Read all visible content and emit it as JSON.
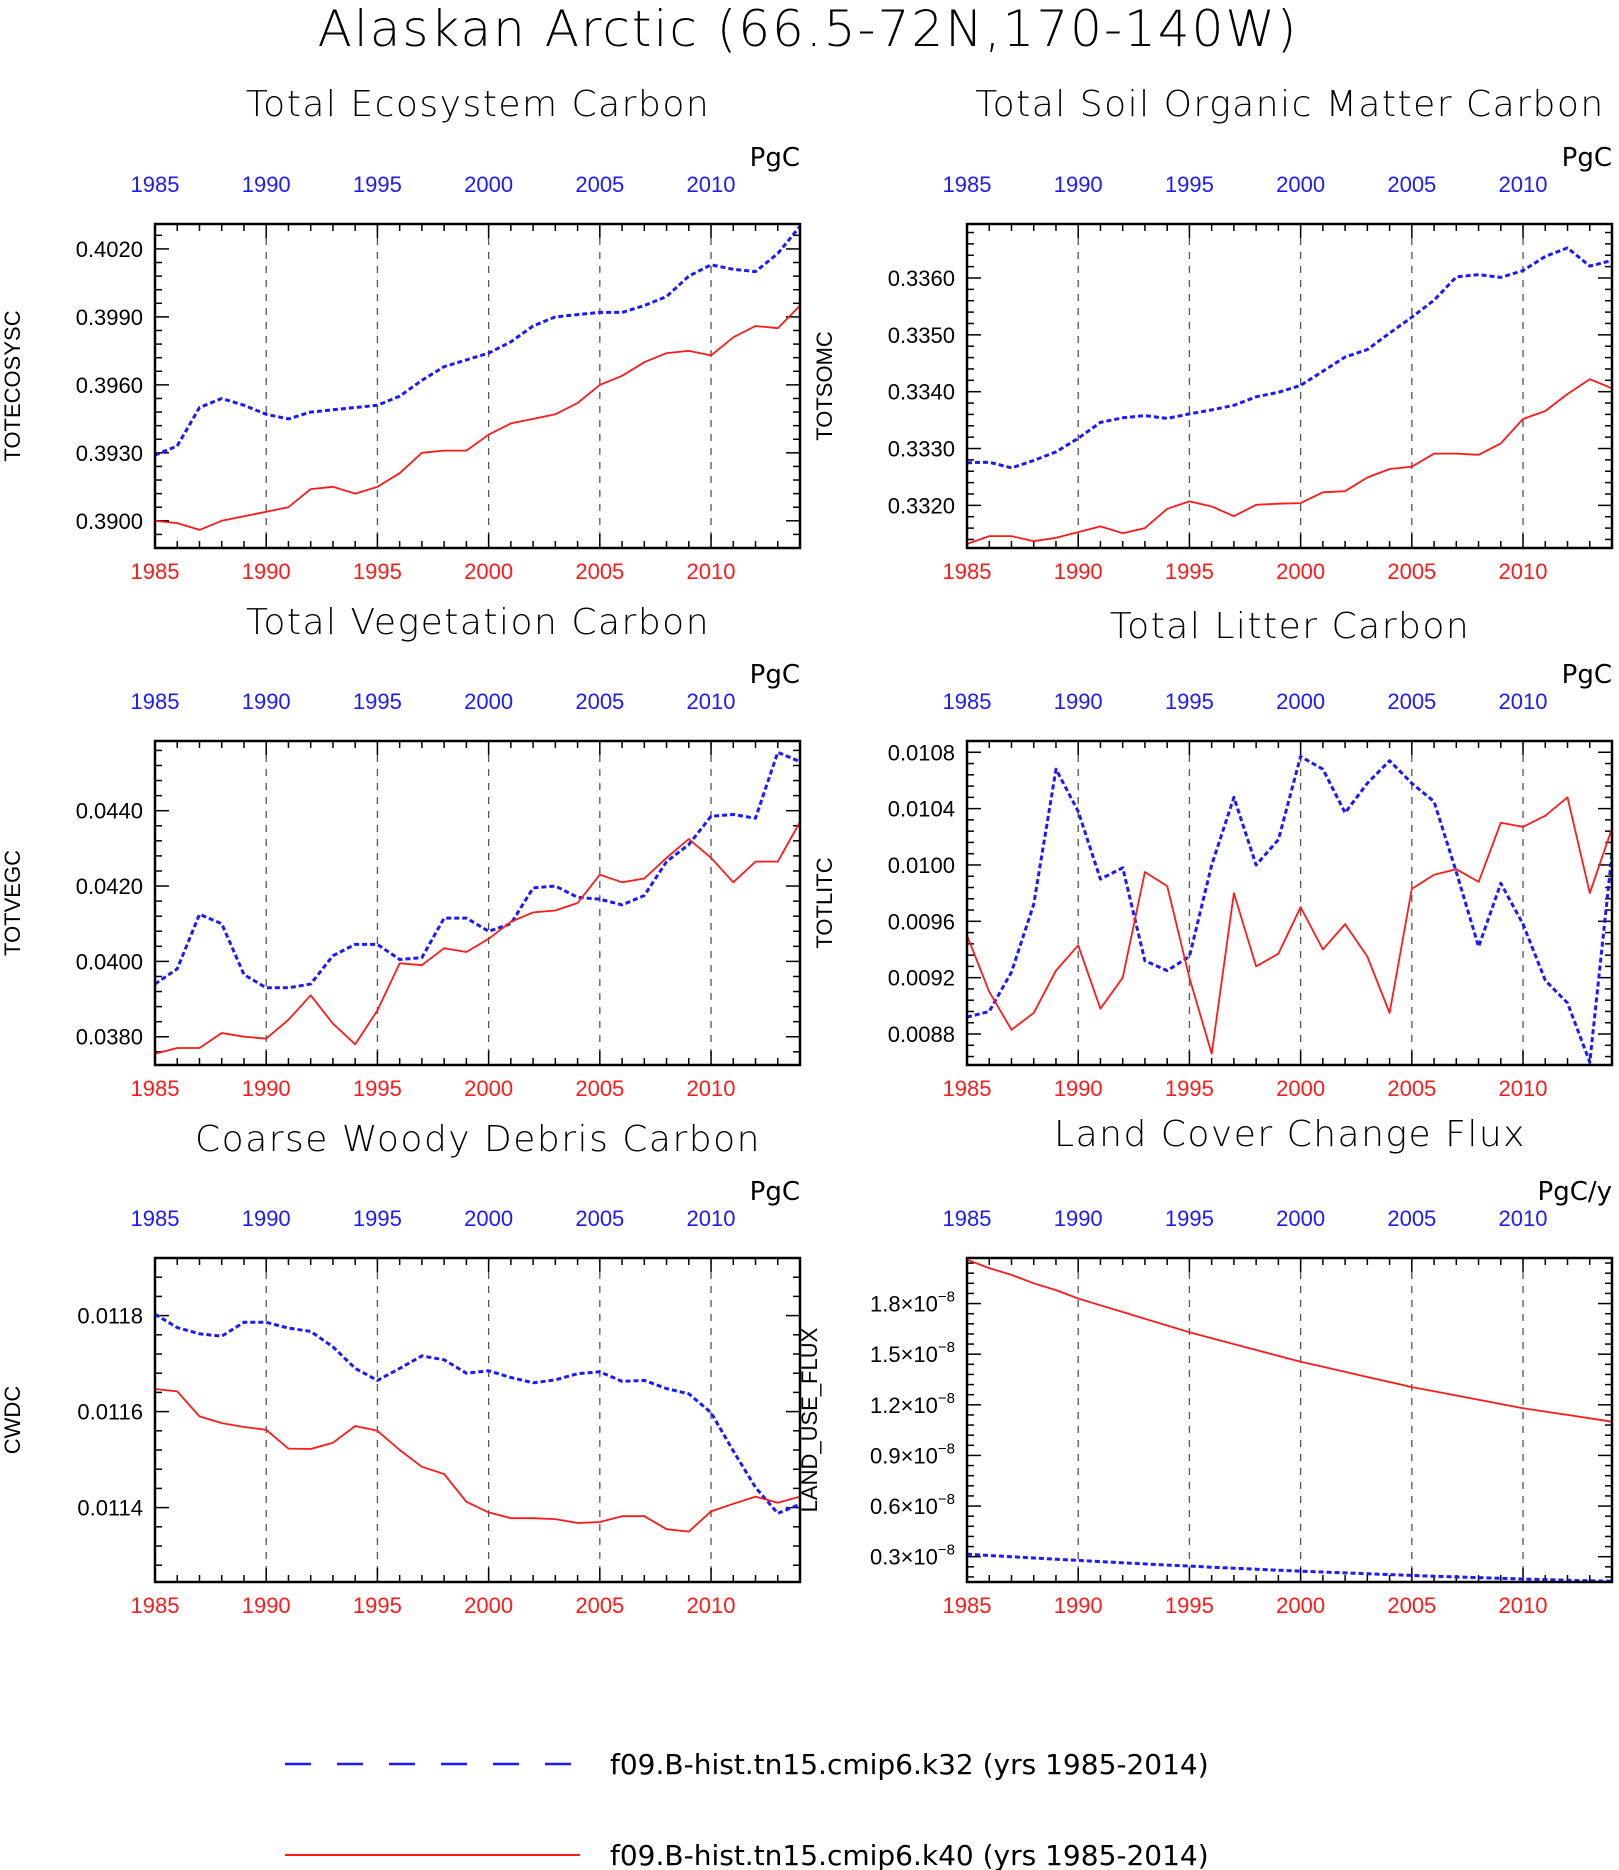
{
  "title": "Alaskan Arctic (66.5-72N,170-140W)",
  "colors": {
    "k32": "#1a1aff",
    "k40": "#ff1a1a",
    "axis": "#000000",
    "grid": "#555555"
  },
  "legend": {
    "items": [
      {
        "label": "f09.B-hist.tn15.cmip6.k32 (yrs 1985-2014)",
        "color": "#1a1aff",
        "style": "dashed"
      },
      {
        "label": "f09.B-hist.tn15.cmip6.k40 (yrs 1985-2014)",
        "color": "#ff1a1a",
        "style": "solid"
      }
    ]
  },
  "chart_data": [
    {
      "type": "line",
      "title": "Total Ecosystem Carbon",
      "ylabel": "TOTECOSYSC",
      "units": "PgC",
      "xlim": [
        1985,
        2014
      ],
      "ylim": [
        0.3888,
        0.4031
      ],
      "xticks": [
        1985,
        1990,
        1995,
        2000,
        2005,
        2010
      ],
      "yticks": [
        0.39,
        0.393,
        0.396,
        0.399,
        0.402
      ],
      "yticklabels": [
        "0.3900",
        "0.3930",
        "0.3960",
        "0.3990",
        "0.4020"
      ],
      "grid": "vertical-dashed",
      "x": [
        1985,
        1986,
        1987,
        1988,
        1989,
        1990,
        1991,
        1992,
        1993,
        1994,
        1995,
        1996,
        1997,
        1998,
        1999,
        2000,
        2001,
        2002,
        2003,
        2004,
        2005,
        2006,
        2007,
        2008,
        2009,
        2010,
        2011,
        2012,
        2013,
        2014
      ],
      "series": [
        {
          "values": [
            0.3929,
            0.3933,
            0.395,
            0.3954,
            0.3951,
            0.3947,
            0.3945,
            0.3948,
            0.3949,
            0.395,
            0.3951,
            0.3955,
            0.3962,
            0.3968,
            0.3971,
            0.3974,
            0.3979,
            0.3986,
            0.399,
            0.3991,
            0.3992,
            0.3992,
            0.3995,
            0.3999,
            0.4008,
            0.4013,
            0.4011,
            0.401,
            0.4018,
            0.403
          ]
        },
        {
          "values": [
            0.39,
            0.3899,
            0.3896,
            0.39,
            0.3902,
            0.3904,
            0.3906,
            0.3914,
            0.3915,
            0.3912,
            0.3915,
            0.3921,
            0.393,
            0.3931,
            0.3931,
            0.3938,
            0.3943,
            0.3945,
            0.3947,
            0.3952,
            0.396,
            0.3964,
            0.397,
            0.3974,
            0.3975,
            0.3973,
            0.3981,
            0.3986,
            0.3985,
            0.3995
          ]
        }
      ]
    },
    {
      "type": "line",
      "title": "Total Soil Organic Matter Carbon",
      "ylabel": "TOTSOMC",
      "units": "PgC",
      "xlim": [
        1985,
        2014
      ],
      "ylim": [
        0.33125,
        0.33695
      ],
      "xticks": [
        1985,
        1990,
        1995,
        2000,
        2005,
        2010
      ],
      "yticks": [
        0.332,
        0.333,
        0.334,
        0.335,
        0.336
      ],
      "yticklabels": [
        "0.3320",
        "0.3330",
        "0.3340",
        "0.3350",
        "0.3360"
      ],
      "grid": "vertical-dashed",
      "x": [
        1985,
        1986,
        1987,
        1988,
        1989,
        1990,
        1991,
        1992,
        1993,
        1994,
        1995,
        1996,
        1997,
        1998,
        1999,
        2000,
        2001,
        2002,
        2003,
        2004,
        2005,
        2006,
        2007,
        2008,
        2009,
        2010,
        2011,
        2012,
        2013,
        2014
      ],
      "series": [
        {
          "values": [
            0.33275,
            0.33276,
            0.33266,
            0.33279,
            0.33294,
            0.33318,
            0.33346,
            0.33354,
            0.33358,
            0.33353,
            0.33361,
            0.33368,
            0.33376,
            0.33391,
            0.33399,
            0.33411,
            0.33436,
            0.33461,
            0.33474,
            0.33503,
            0.33531,
            0.33561,
            0.33602,
            0.33606,
            0.33601,
            0.33613,
            0.33638,
            0.33653,
            0.33621,
            0.33631
          ]
        },
        {
          "values": [
            0.33132,
            0.33146,
            0.33146,
            0.33137,
            0.33143,
            0.33153,
            0.33163,
            0.33151,
            0.3316,
            0.33194,
            0.33207,
            0.33198,
            0.33181,
            0.33201,
            0.33203,
            0.33204,
            0.33223,
            0.33225,
            0.33249,
            0.33264,
            0.33268,
            0.33291,
            0.33291,
            0.33289,
            0.33309,
            0.33352,
            0.33366,
            0.33396,
            0.33422,
            0.33406
          ]
        }
      ]
    },
    {
      "type": "line",
      "title": "Total Vegetation Carbon",
      "ylabel": "TOTVEGC",
      "units": "PgC",
      "xlim": [
        1985,
        2014
      ],
      "ylim": [
        0.03725,
        0.04585
      ],
      "xticks": [
        1985,
        1990,
        1995,
        2000,
        2005,
        2010
      ],
      "yticks": [
        0.038,
        0.04,
        0.042,
        0.044
      ],
      "yticklabels": [
        "0.0380",
        "0.0400",
        "0.0420",
        "0.0440"
      ],
      "grid": "vertical-dashed",
      "x": [
        1985,
        1986,
        1987,
        1988,
        1989,
        1990,
        1991,
        1992,
        1993,
        1994,
        1995,
        1996,
        1997,
        1998,
        1999,
        2000,
        2001,
        2002,
        2003,
        2004,
        2005,
        2006,
        2007,
        2008,
        2009,
        2010,
        2011,
        2012,
        2013,
        2014
      ],
      "series": [
        {
          "values": [
            0.0394,
            0.0398,
            0.04125,
            0.041,
            0.03965,
            0.0393,
            0.0393,
            0.0394,
            0.04015,
            0.04045,
            0.04045,
            0.04005,
            0.0401,
            0.04115,
            0.04115,
            0.0408,
            0.041,
            0.04195,
            0.042,
            0.0417,
            0.04165,
            0.0415,
            0.04175,
            0.04265,
            0.0431,
            0.04385,
            0.0439,
            0.0438,
            0.04555,
            0.0453
          ]
        },
        {
          "values": [
            0.03755,
            0.0377,
            0.0377,
            0.0381,
            0.038,
            0.03795,
            0.03845,
            0.0391,
            0.03835,
            0.0378,
            0.0387,
            0.03995,
            0.0399,
            0.04035,
            0.04025,
            0.0406,
            0.04105,
            0.0413,
            0.04135,
            0.04155,
            0.0423,
            0.0421,
            0.0422,
            0.04275,
            0.04325,
            0.04275,
            0.0421,
            0.04265,
            0.04265,
            0.0437
          ]
        }
      ]
    },
    {
      "type": "line",
      "title": "Total Litter Carbon",
      "ylabel": "TOTLITC",
      "units": "PgC",
      "xlim": [
        1985,
        2014
      ],
      "ylim": [
        0.00858,
        0.01088
      ],
      "xticks": [
        1985,
        1990,
        1995,
        2000,
        2005,
        2010
      ],
      "yticks": [
        0.0088,
        0.0092,
        0.0096,
        0.01,
        0.0104,
        0.0108
      ],
      "yticklabels": [
        "0.0088",
        "0.0092",
        "0.0096",
        "0.0100",
        "0.0104",
        "0.0108"
      ],
      "grid": "vertical-dashed",
      "x": [
        1985,
        1986,
        1987,
        1988,
        1989,
        1990,
        1991,
        1992,
        1993,
        1994,
        1995,
        1996,
        1997,
        1998,
        1999,
        2000,
        2001,
        2002,
        2003,
        2004,
        2005,
        2006,
        2007,
        2008,
        2009,
        2010,
        2011,
        2012,
        2013,
        2014
      ],
      "series": [
        {
          "values": [
            0.00892,
            0.00896,
            0.00924,
            0.00972,
            0.01068,
            0.01038,
            0.0099,
            0.00998,
            0.00932,
            0.00925,
            0.00935,
            0.01,
            0.01048,
            0.01,
            0.01018,
            0.01077,
            0.01068,
            0.01037,
            0.01058,
            0.01074,
            0.01058,
            0.01045,
            0.00995,
            0.00942,
            0.00987,
            0.00958,
            0.00918,
            0.00902,
            0.0086,
            0.01008
          ]
        },
        {
          "values": [
            0.0095,
            0.0091,
            0.00883,
            0.00895,
            0.00925,
            0.00943,
            0.00898,
            0.0092,
            0.00995,
            0.00985,
            0.0092,
            0.00866,
            0.0098,
            0.00928,
            0.00937,
            0.0097,
            0.0094,
            0.00958,
            0.00935,
            0.00895,
            0.00983,
            0.00993,
            0.00997,
            0.00988,
            0.0103,
            0.01027,
            0.01035,
            0.01048,
            0.0098,
            0.01026
          ]
        }
      ]
    },
    {
      "type": "line",
      "title": "Coarse Woody Debris Carbon",
      "ylabel": "CWDC",
      "units": "PgC",
      "xlim": [
        1985,
        2014
      ],
      "ylim": [
        0.011245,
        0.01192
      ],
      "xticks": [
        1985,
        1990,
        1995,
        2000,
        2005,
        2010
      ],
      "yticks": [
        0.0114,
        0.0116,
        0.0118
      ],
      "yticklabels": [
        "0.0114",
        "0.0116",
        "0.0118"
      ],
      "grid": "vertical-dashed",
      "x": [
        1985,
        1986,
        1987,
        1988,
        1989,
        1990,
        1991,
        1992,
        1993,
        1994,
        1995,
        1996,
        1997,
        1998,
        1999,
        2000,
        2001,
        2002,
        2003,
        2004,
        2005,
        2006,
        2007,
        2008,
        2009,
        2010,
        2011,
        2012,
        2013,
        2014
      ],
      "series": [
        {
          "values": [
            0.011803,
            0.011775,
            0.011762,
            0.011757,
            0.011786,
            0.011786,
            0.011774,
            0.011767,
            0.011735,
            0.01169,
            0.011665,
            0.01169,
            0.011716,
            0.011708,
            0.01168,
            0.011685,
            0.011671,
            0.01166,
            0.011666,
            0.011679,
            0.011683,
            0.011663,
            0.011665,
            0.011648,
            0.011637,
            0.011598,
            0.011518,
            0.011442,
            0.011388,
            0.011407
          ]
        },
        {
          "values": [
            0.011647,
            0.011642,
            0.01159,
            0.011576,
            0.011568,
            0.011562,
            0.011523,
            0.011522,
            0.011535,
            0.01157,
            0.01156,
            0.01152,
            0.011485,
            0.01147,
            0.011412,
            0.01139,
            0.011378,
            0.011378,
            0.011376,
            0.011368,
            0.01137,
            0.011382,
            0.011382,
            0.011355,
            0.01135,
            0.011392,
            0.011408,
            0.011423,
            0.01141,
            0.011423
          ]
        }
      ]
    },
    {
      "type": "line",
      "title": "Land Cover Change Flux",
      "ylabel": "LAND_USE_FLUX",
      "units": "PgC/y",
      "xlim": [
        1985,
        2014
      ],
      "ylim": [
        1.5e-09,
        2.07e-08
      ],
      "xticks": [
        1985,
        1990,
        1995,
        2000,
        2005,
        2010
      ],
      "yticks": [
        3e-09,
        6e-09,
        9e-09,
        1.2e-08,
        1.5e-08,
        1.8e-08
      ],
      "yticklabels": [
        "0.3×10",
        "0.6×10",
        "0.9×10",
        "1.2×10",
        "1.5×10",
        "1.8×10"
      ],
      "ytick_exponent": "−8",
      "grid": "vertical-dashed",
      "x": [
        1985,
        1986,
        1987,
        1988,
        1989,
        1990,
        1991,
        1992,
        1993,
        1994,
        1995,
        1996,
        1997,
        1998,
        1999,
        2000,
        2001,
        2002,
        2003,
        2004,
        2005,
        2006,
        2007,
        2008,
        2009,
        2010,
        2011,
        2012,
        2013,
        2014
      ],
      "series": [
        {
          "values": [
            3.15e-09,
            3.07e-09,
            3e-09,
            2.92e-09,
            2.85e-09,
            2.78e-09,
            2.71e-09,
            2.64e-09,
            2.57e-09,
            2.5e-09,
            2.44e-09,
            2.38e-09,
            2.32e-09,
            2.26e-09,
            2.2e-09,
            2.14e-09,
            2.09e-09,
            2.04e-09,
            1.99e-09,
            1.94e-09,
            1.89e-09,
            1.84e-09,
            1.8e-09,
            1.76e-09,
            1.72e-09,
            1.68e-09,
            1.64e-09,
            1.6e-09,
            1.57e-09,
            1.54e-09
          ]
        },
        {
          "values": [
            2.06e-08,
            2.01e-08,
            1.97e-08,
            1.92e-08,
            1.88e-08,
            1.83e-08,
            1.79e-08,
            1.75e-08,
            1.71e-08,
            1.67e-08,
            1.63e-08,
            1.595e-08,
            1.56e-08,
            1.525e-08,
            1.49e-08,
            1.455e-08,
            1.425e-08,
            1.395e-08,
            1.365e-08,
            1.335e-08,
            1.305e-08,
            1.28e-08,
            1.255e-08,
            1.23e-08,
            1.205e-08,
            1.18e-08,
            1.16e-08,
            1.14e-08,
            1.12e-08,
            1.1e-08
          ]
        }
      ]
    }
  ]
}
